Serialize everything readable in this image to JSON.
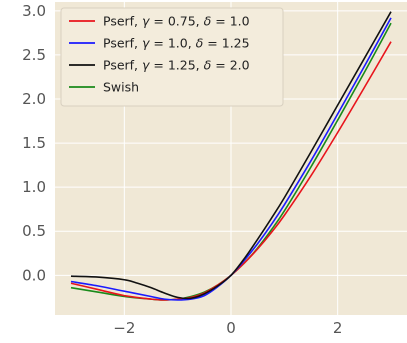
{
  "chart_data": {
    "type": "line",
    "title": "",
    "xlabel": "",
    "ylabel": "",
    "xlim": [
      -3.3,
      3.3
    ],
    "ylim": [
      -0.45,
      3.1
    ],
    "xticks": [
      -2,
      0,
      2
    ],
    "yticks": [
      0.0,
      0.5,
      1.0,
      1.5,
      2.0,
      2.5,
      3.0
    ],
    "xtick_labels": [
      "−2",
      "0",
      "2"
    ],
    "ytick_labels": [
      "0.0",
      "0.5",
      "1.0",
      "1.5",
      "2.0",
      "2.5",
      "3.0"
    ],
    "grid": true,
    "legend_position": "top-left",
    "background_color": "#f0e8d6",
    "grid_color": "#ffffff",
    "series": [
      {
        "name": "Pserf, γ = 0.75, δ = 1.0",
        "label_parts": [
          "Pserf, ",
          "γ",
          " = 0.75, ",
          "δ",
          " = 1.0"
        ],
        "color": "#e8141c",
        "x": [
          -3.0,
          -2.5,
          -2.0,
          -1.5,
          -1.25,
          -1.0,
          -0.75,
          -0.5,
          -0.25,
          0.0,
          0.25,
          0.5,
          0.75,
          1.0,
          1.5,
          2.0,
          2.5,
          3.0
        ],
        "y": [
          -0.09,
          -0.16,
          -0.23,
          -0.27,
          -0.28,
          -0.27,
          -0.25,
          -0.2,
          -0.11,
          0.0,
          0.14,
          0.3,
          0.48,
          0.68,
          1.13,
          1.62,
          2.13,
          2.65
        ]
      },
      {
        "name": "Pserf, γ = 1.0, δ = 1.25",
        "label_parts": [
          "Pserf, ",
          "γ",
          " = 1.0, ",
          "δ",
          " = 1.25"
        ],
        "color": "#1a1aff",
        "x": [
          -3.0,
          -2.5,
          -2.0,
          -1.5,
          -1.25,
          -1.0,
          -0.75,
          -0.5,
          -0.25,
          0.0,
          0.25,
          0.5,
          0.75,
          1.0,
          1.5,
          2.0,
          2.5,
          3.0
        ],
        "y": [
          -0.07,
          -0.12,
          -0.18,
          -0.24,
          -0.27,
          -0.28,
          -0.27,
          -0.23,
          -0.13,
          0.0,
          0.17,
          0.36,
          0.57,
          0.8,
          1.3,
          1.83,
          2.37,
          2.92
        ]
      },
      {
        "name": "Pserf, γ = 1.25, δ = 2.0",
        "label_parts": [
          "Pserf, ",
          "γ",
          " = 1.25, ",
          "δ",
          " = 2.0"
        ],
        "color": "#111111",
        "x": [
          -3.0,
          -2.5,
          -2.0,
          -1.75,
          -1.5,
          -1.25,
          -1.0,
          -0.75,
          -0.5,
          -0.25,
          0.0,
          0.25,
          0.5,
          0.75,
          1.0,
          1.5,
          2.0,
          2.5,
          3.0
        ],
        "y": [
          -0.01,
          -0.02,
          -0.05,
          -0.09,
          -0.14,
          -0.2,
          -0.25,
          -0.26,
          -0.21,
          -0.12,
          0.0,
          0.19,
          0.41,
          0.64,
          0.88,
          1.4,
          1.93,
          2.46,
          2.99
        ]
      },
      {
        "name": "Swish",
        "label_parts": [
          "Swish"
        ],
        "color": "#1a8a1a",
        "x": [
          -3.0,
          -2.5,
          -2.0,
          -1.5,
          -1.25,
          -1.0,
          -0.75,
          -0.5,
          -0.25,
          0.0,
          0.25,
          0.5,
          0.75,
          1.0,
          1.5,
          2.0,
          2.5,
          3.0
        ],
        "y": [
          -0.14,
          -0.19,
          -0.24,
          -0.27,
          -0.28,
          -0.27,
          -0.24,
          -0.19,
          -0.11,
          0.0,
          0.14,
          0.31,
          0.51,
          0.73,
          1.23,
          1.76,
          2.3,
          2.86
        ]
      }
    ]
  }
}
